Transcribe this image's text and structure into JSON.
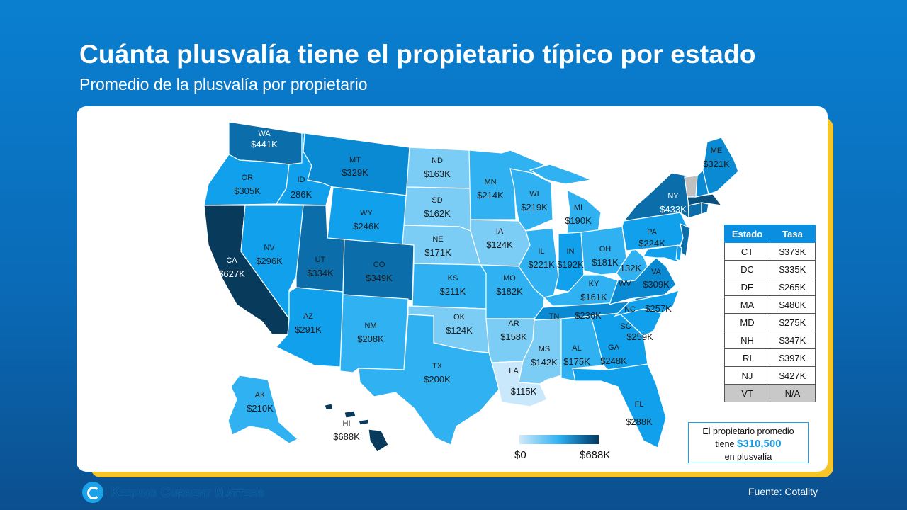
{
  "header": {
    "title": "Cuánta plusvalía tiene el propietario típico por estado",
    "subtitle": "Promedio de la plusvalía por propietario"
  },
  "colors": {
    "shade1": "#c9e8fb",
    "shade2": "#7ccdf6",
    "shade3": "#30b1f2",
    "shade4": "#11a0eb",
    "shade5": "#0a8ad3",
    "shade6": "#0b6eaa",
    "shade7": "#0a4f7c",
    "shade8": "#083a5c",
    "na": "#c0c0c0"
  },
  "states": {
    "WA": {
      "abbr": "WA",
      "value": "$441K"
    },
    "OR": {
      "abbr": "OR",
      "value": "$305K"
    },
    "CA": {
      "abbr": "CA",
      "value": "$627K"
    },
    "ID": {
      "abbr": "ID",
      "value": "286K"
    },
    "NV": {
      "abbr": "NV",
      "value": "$296K"
    },
    "MT": {
      "abbr": "MT",
      "value": "$329K"
    },
    "WY": {
      "abbr": "WY",
      "value": "$246K"
    },
    "UT": {
      "abbr": "UT",
      "value": "$334K"
    },
    "CO": {
      "abbr": "CO",
      "value": "$349K"
    },
    "AZ": {
      "abbr": "AZ",
      "value": "$291K"
    },
    "NM": {
      "abbr": "NM",
      "value": "$208K"
    },
    "ND": {
      "abbr": "ND",
      "value": "$163K"
    },
    "SD": {
      "abbr": "SD",
      "value": "$162K"
    },
    "NE": {
      "abbr": "NE",
      "value": "$171K"
    },
    "KS": {
      "abbr": "KS",
      "value": "$211K"
    },
    "OK": {
      "abbr": "OK",
      "value": "$124K"
    },
    "TX": {
      "abbr": "TX",
      "value": "$200K"
    },
    "MN": {
      "abbr": "MN",
      "value": "$214K"
    },
    "IA": {
      "abbr": "IA",
      "value": "$124K"
    },
    "MO": {
      "abbr": "MO",
      "value": "$182K"
    },
    "AR": {
      "abbr": "AR",
      "value": "$158K"
    },
    "LA": {
      "abbr": "LA",
      "value": "$115K"
    },
    "WI": {
      "abbr": "WI",
      "value": "$219K"
    },
    "IL": {
      "abbr": "IL",
      "value": "$221K"
    },
    "MS": {
      "abbr": "MS",
      "value": "$142K"
    },
    "MI": {
      "abbr": "MI",
      "value": "$190K"
    },
    "IN": {
      "abbr": "IN",
      "value": "$192K"
    },
    "KY": {
      "abbr": "KY",
      "value": "$161K"
    },
    "TN": {
      "abbr": "TN",
      "value": "$236K"
    },
    "AL": {
      "abbr": "AL",
      "value": "$175K"
    },
    "OH": {
      "abbr": "OH",
      "value": "$181K"
    },
    "WV": {
      "abbr": "WV",
      "value": "132K"
    },
    "GA": {
      "abbr": "GA",
      "value": "$248K"
    },
    "FL": {
      "abbr": "FL",
      "value": "$288K"
    },
    "SC": {
      "abbr": "SC",
      "value": "$259K"
    },
    "NC": {
      "abbr": "NC",
      "value": "$257K"
    },
    "VA": {
      "abbr": "VA",
      "value": "$309K"
    },
    "PA": {
      "abbr": "PA",
      "value": "$224K"
    },
    "NY": {
      "abbr": "NY",
      "value": "$433K"
    },
    "ME": {
      "abbr": "ME",
      "value": "$321K"
    },
    "AK": {
      "abbr": "AK",
      "value": "$210K"
    },
    "HI": {
      "abbr": "HI",
      "value": "$688K"
    }
  },
  "table": {
    "header_state": "Estado",
    "header_rate": "Tasa",
    "rows": [
      {
        "state": "CT",
        "rate": "$373K"
      },
      {
        "state": "DC",
        "rate": "$335K"
      },
      {
        "state": "DE",
        "rate": "$265K"
      },
      {
        "state": "MA",
        "rate": "$480K"
      },
      {
        "state": "MD",
        "rate": "$275K"
      },
      {
        "state": "NH",
        "rate": "$347K"
      },
      {
        "state": "RI",
        "rate": "$397K"
      },
      {
        "state": "NJ",
        "rate": "$427K"
      },
      {
        "state": "VT",
        "rate": "N/A"
      }
    ]
  },
  "legend": {
    "min": "$0",
    "max": "$688K"
  },
  "callout": {
    "line1": "El propietario promedio",
    "line2": "tiene",
    "amount": "$310,500",
    "line3": "en plusvalía"
  },
  "footer": {
    "brand": "Keeping Current Matters",
    "source": "Fuente: Cotality"
  }
}
